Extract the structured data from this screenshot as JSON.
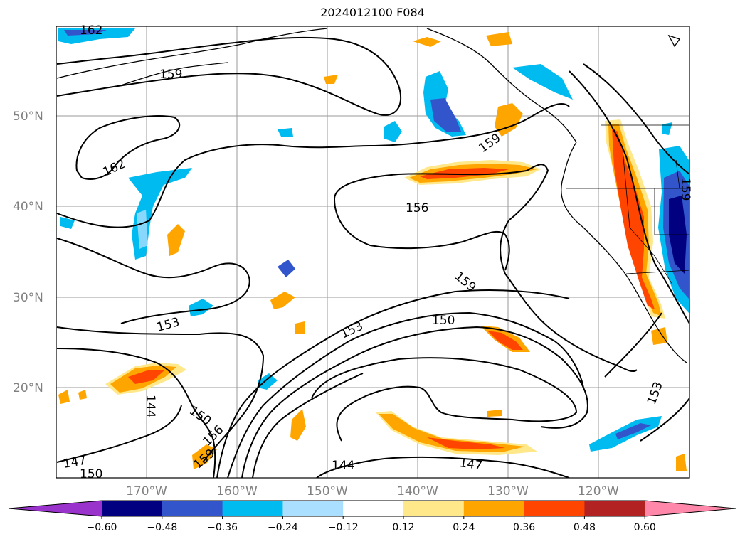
{
  "title": "2024012100 F084",
  "lat_labels": [
    "50°N",
    "40°N",
    "30°N",
    "20°N"
  ],
  "lon_labels": [
    "170°W",
    "160°W",
    "150°W",
    "140°W",
    "130°W",
    "120°W"
  ],
  "contour_labels": [
    "162",
    "159",
    "162",
    "156",
    "159",
    "159",
    "153",
    "153",
    "150",
    "144",
    "150",
    "156",
    "159",
    "147",
    "150",
    "144",
    "147",
    "153",
    "159"
  ],
  "colorbar": {
    "colors": [
      "#9933cc",
      "#000080",
      "#3355cc",
      "#00bbf0",
      "#aadfff",
      "#ffffff",
      "#ffe88a",
      "#ffa500",
      "#ff4500",
      "#b22222",
      "#ff88aa"
    ],
    "ticks": [
      "−0.60",
      "−0.48",
      "−0.36",
      "−0.24",
      "−0.12",
      "0.12",
      "0.24",
      "0.36",
      "0.48",
      "0.60"
    ]
  }
}
